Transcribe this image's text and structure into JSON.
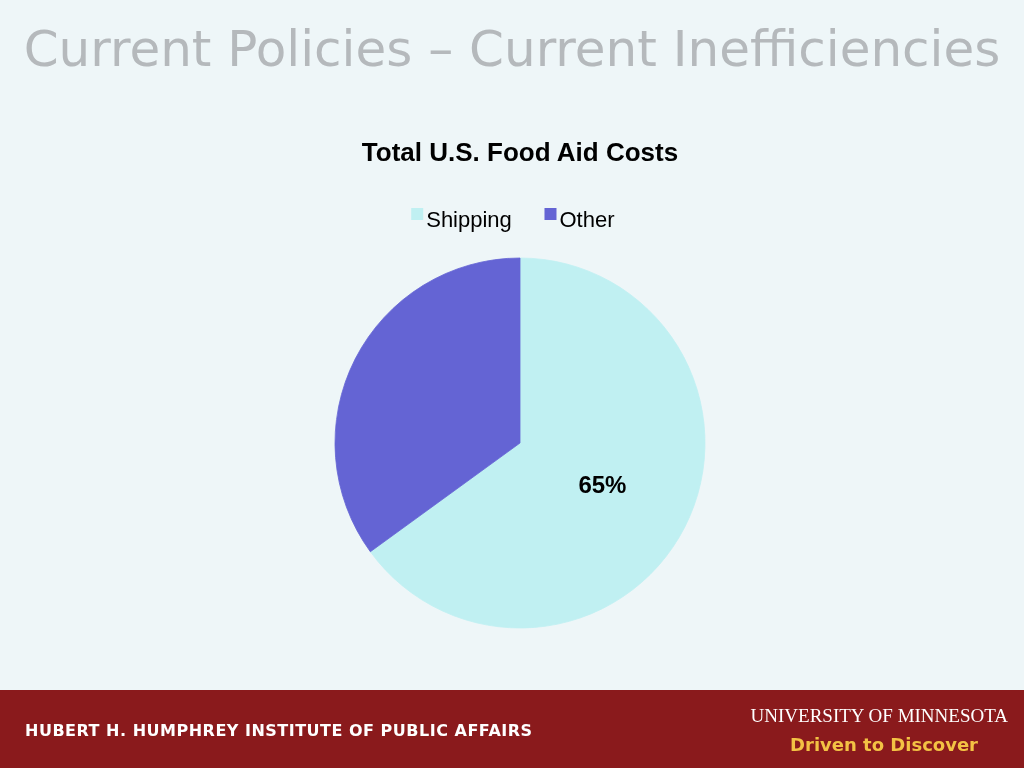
{
  "chart_data": {
    "type": "pie",
    "title": "Current Policies – Current Inefficiencies",
    "subtitle": "Total U.S. Food Aid Costs",
    "categories": [
      "Shipping",
      "Other"
    ],
    "values": [
      65,
      35
    ],
    "colors": [
      "#c0f0f2",
      "#6464d4"
    ],
    "value_labels": [
      "65%",
      null
    ],
    "legend": "top",
    "annotations": [
      "HUBERT H. HUMPHREY INSTITUTE OF PUBLIC AFFAIRS",
      "UNIVERSITY OF MINNESOTA",
      "Driven to Discover"
    ]
  }
}
